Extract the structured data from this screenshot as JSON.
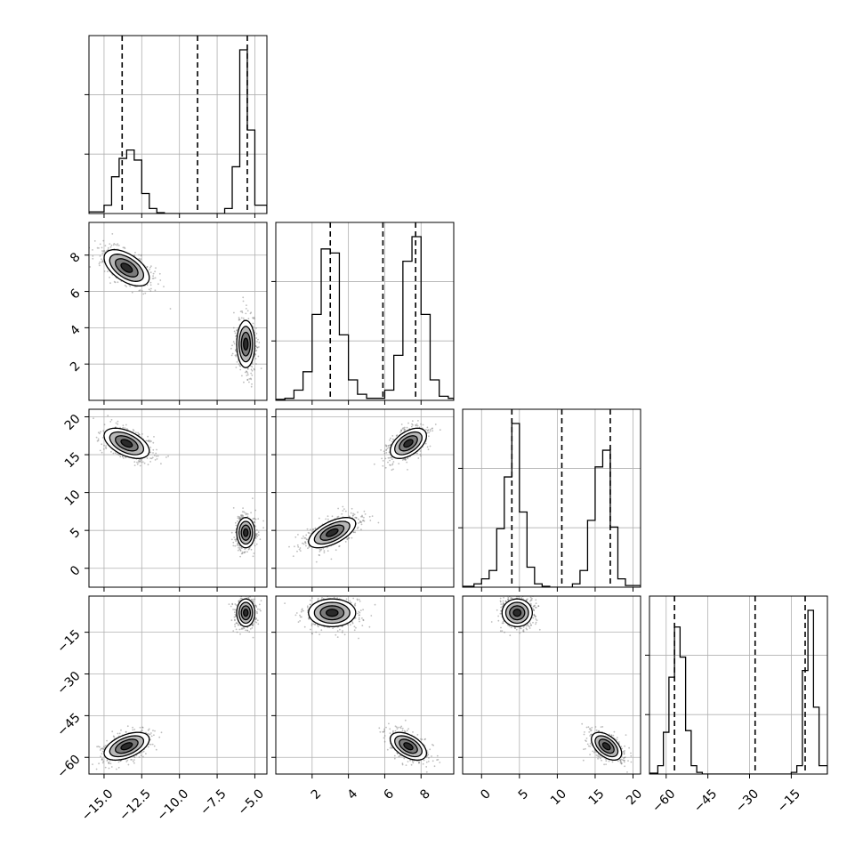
{
  "chart_data": {
    "type": "corner",
    "grid": true,
    "n_params": 4,
    "params": [
      {
        "range": [
          -16.0,
          -4.2
        ],
        "ticks": [
          -15.0,
          -12.5,
          -10.0,
          -7.5,
          -5.0
        ],
        "tick_labels": [
          "−15.0",
          "−12.5",
          "−10.0",
          "−7.5",
          "−5.0"
        ],
        "quantiles": [
          -13.8,
          -8.8,
          -5.5
        ],
        "hist_bins": [
          -16.0,
          -15.0,
          -14.5,
          -14.0,
          -13.5,
          -13.0,
          -12.5,
          -12.0,
          -11.5,
          -11.0,
          -10.5,
          -10.0,
          -9.5,
          -9.0,
          -8.5,
          -8.0,
          -7.5,
          -7.0,
          -6.5,
          -6.0,
          -5.5,
          -5.0,
          -4.2
        ],
        "hist_values": [
          0.01,
          0.05,
          0.22,
          0.33,
          0.38,
          0.32,
          0.12,
          0.03,
          0.005,
          0,
          0,
          0,
          0,
          0,
          0,
          0,
          0,
          0.03,
          0.28,
          0.98,
          0.5,
          0.05
        ]
      },
      {
        "range": [
          0.0,
          9.8
        ],
        "ticks": [
          2,
          4,
          6,
          8
        ],
        "tick_labels": [
          "2",
          "4",
          "6",
          "8"
        ],
        "quantiles": [
          3.0,
          5.9,
          7.7
        ],
        "hist_bins": [
          0.0,
          0.5,
          1.0,
          1.5,
          2.0,
          2.5,
          3.0,
          3.5,
          4.0,
          4.5,
          5.0,
          5.5,
          6.0,
          6.5,
          7.0,
          7.5,
          8.0,
          8.5,
          9.0,
          9.5,
          9.8
        ],
        "hist_values": [
          0.005,
          0.01,
          0.05,
          0.14,
          0.42,
          0.74,
          0.72,
          0.32,
          0.1,
          0.03,
          0.01,
          0.01,
          0.05,
          0.22,
          0.68,
          0.8,
          0.42,
          0.1,
          0.02,
          0.01
        ]
      },
      {
        "range": [
          -2.5,
          21.0
        ],
        "ticks": [
          0,
          5,
          10,
          15,
          20
        ],
        "tick_labels": [
          "0",
          "5",
          "10",
          "15",
          "20"
        ],
        "quantiles": [
          4.0,
          10.6,
          17.0
        ],
        "hist_bins": [
          -2.5,
          -1.0,
          0.0,
          1.0,
          2.0,
          3.0,
          4.0,
          5.0,
          6.0,
          7.0,
          8.0,
          9.0,
          10.0,
          11.0,
          12.0,
          13.0,
          14.0,
          15.0,
          16.0,
          17.0,
          18.0,
          19.0,
          21.0
        ],
        "hist_values": [
          0.005,
          0.02,
          0.05,
          0.1,
          0.35,
          0.66,
          0.98,
          0.45,
          0.12,
          0.02,
          0.005,
          0,
          0,
          0,
          0.02,
          0.1,
          0.4,
          0.72,
          0.82,
          0.36,
          0.05,
          0.01
        ]
      },
      {
        "range": [
          -66,
          -2
        ],
        "ticks": [
          -60,
          -45,
          -30,
          -15
        ],
        "tick_labels": [
          "−60",
          "−45",
          "−30",
          "−15"
        ],
        "quantiles": [
          -57,
          -28,
          -10
        ],
        "hist_bins": [
          -66,
          -63,
          -61,
          -59,
          -57,
          -55,
          -53,
          -51,
          -49,
          -47,
          -45,
          -43,
          -41,
          -39,
          -37,
          -35,
          -33,
          -31,
          -29,
          -27,
          -25,
          -23,
          -21,
          -19,
          -17,
          -15,
          -13,
          -11,
          -9,
          -7,
          -5,
          -2
        ],
        "hist_values": [
          0.005,
          0.05,
          0.25,
          0.58,
          0.88,
          0.7,
          0.26,
          0.05,
          0.01,
          0,
          0,
          0,
          0,
          0,
          0,
          0,
          0,
          0,
          0,
          0,
          0,
          0,
          0,
          0,
          0,
          0.01,
          0.05,
          0.62,
          0.98,
          0.4,
          0.05
        ]
      }
    ],
    "modes": [
      [
        -13.5,
        7.3,
        16.5,
        -56
      ],
      [
        -5.6,
        3.1,
        4.7,
        -8
      ]
    ],
    "mode_spreads": [
      [
        0.75,
        0.5,
        1.0,
        2.5
      ],
      [
        0.3,
        0.65,
        1.0,
        2.5
      ]
    ],
    "correlations": [
      [
        1.0,
        -0.5,
        -0.5,
        0.55
      ],
      [
        -0.5,
        1.0,
        0.5,
        -0.5
      ],
      [
        -0.5,
        0.5,
        1.0,
        -0.5
      ],
      [
        0.55,
        -0.5,
        -0.5,
        1.0
      ]
    ],
    "mode_correlations": [
      [
        [
          1.0,
          -0.55,
          -0.5,
          0.5
        ],
        [
          -0.55,
          1.0,
          0.5,
          -0.5
        ],
        [
          -0.5,
          0.5,
          1.0,
          -0.5
        ],
        [
          0.5,
          -0.5,
          -0.5,
          1.0
        ]
      ],
      [
        [
          1.0,
          0.0,
          0.0,
          0.0
        ],
        [
          0.0,
          1.0,
          0.6,
          0.0
        ],
        [
          0.0,
          0.6,
          1.0,
          0.0
        ],
        [
          0.0,
          0.0,
          0.0,
          1.0
        ]
      ]
    ],
    "contour_levels_sigma": [
      0.5,
      1.0,
      1.5,
      2.0
    ],
    "colors": {
      "line": "#000000",
      "grid": "#b0b0b0",
      "points": "#6e6e6e",
      "fill_levels": [
        "#2a2a2a",
        "#7a7a7a",
        "#b8b8b8",
        "#ffffff"
      ]
    }
  }
}
